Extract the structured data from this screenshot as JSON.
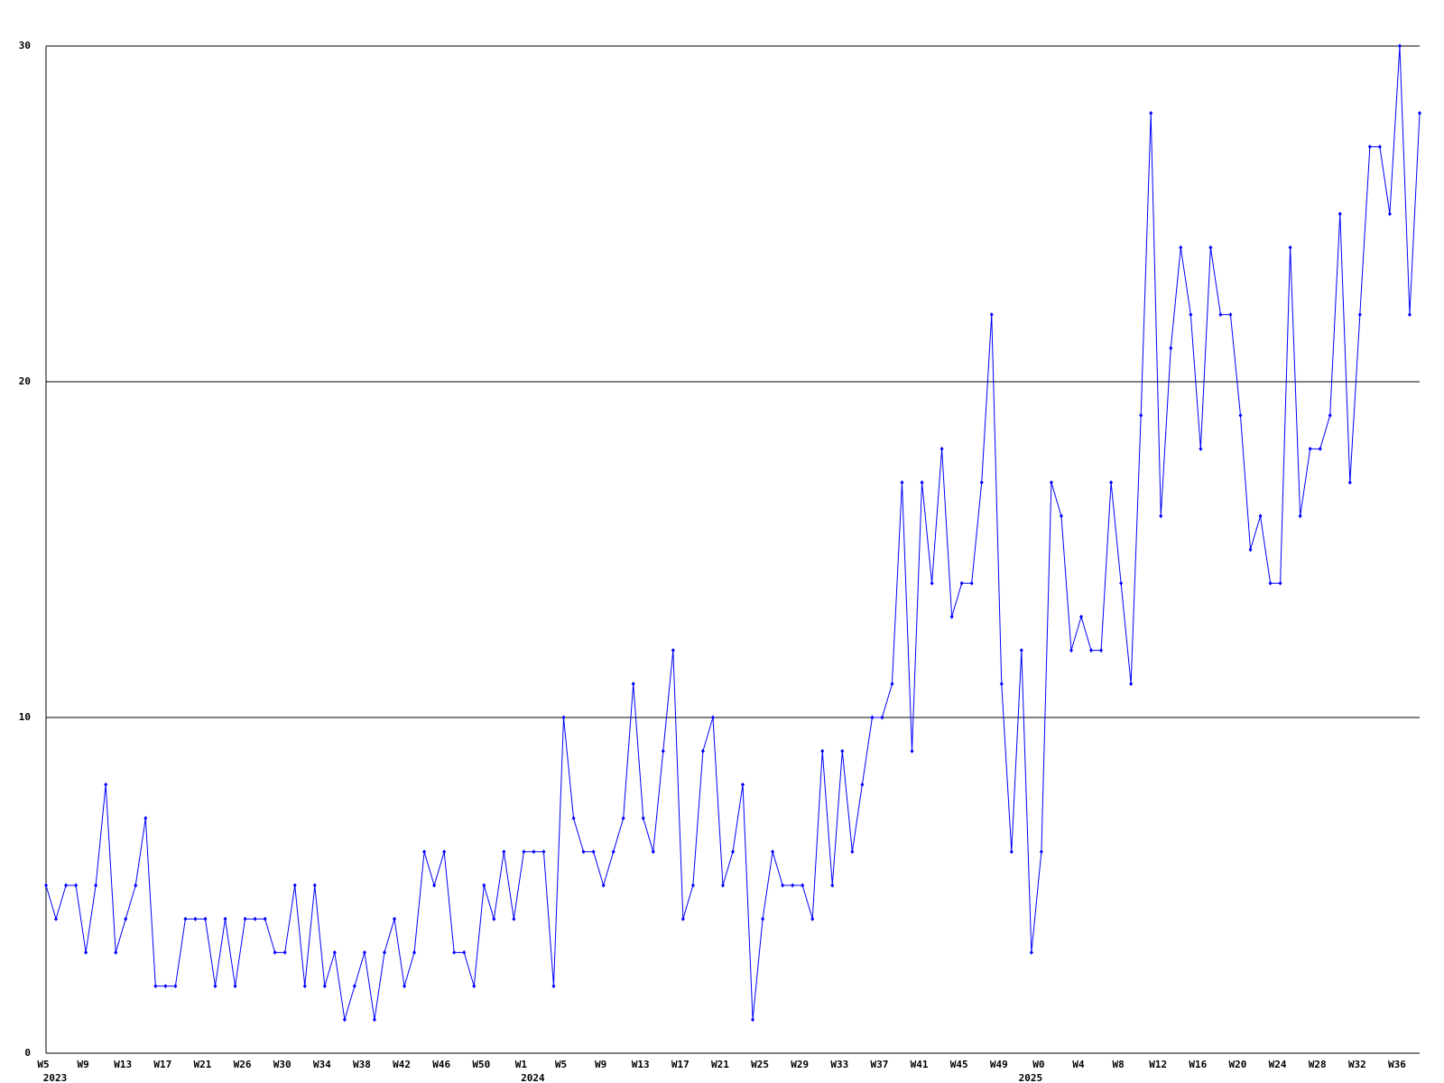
{
  "chart_data": {
    "type": "line",
    "color": "#0000ff",
    "grid": true,
    "ylim": [
      0,
      30
    ],
    "yticks": [
      0,
      10,
      20,
      30
    ],
    "categories": [
      "W5",
      null,
      null,
      null,
      "W9",
      null,
      null,
      null,
      "W13",
      null,
      null,
      null,
      "W17",
      null,
      null,
      null,
      "W21",
      null,
      null,
      null,
      "W26",
      null,
      null,
      null,
      "W30",
      null,
      null,
      null,
      "W34",
      null,
      null,
      null,
      "W38",
      null,
      null,
      null,
      "W42",
      null,
      null,
      null,
      "W46",
      null,
      null,
      null,
      "W50",
      null,
      null,
      null,
      "W1",
      null,
      null,
      null,
      "W5",
      null,
      null,
      null,
      "W9",
      null,
      null,
      null,
      "W13",
      null,
      null,
      null,
      "W17",
      null,
      null,
      null,
      "W21",
      null,
      null,
      null,
      "W25",
      null,
      null,
      null,
      "W29",
      null,
      null,
      null,
      "W33",
      null,
      null,
      null,
      "W37",
      null,
      null,
      null,
      "W41",
      null,
      null,
      null,
      "W45",
      null,
      null,
      null,
      "W49",
      null,
      null,
      null,
      "W0",
      null,
      null,
      null,
      "W4",
      null,
      null,
      null,
      "W8",
      null,
      null,
      null,
      "W12",
      null,
      null,
      null,
      "W16",
      null,
      null,
      null,
      "W20",
      null,
      null,
      null,
      "W24",
      null,
      null,
      null,
      "W28",
      null,
      null,
      null,
      "W32",
      null,
      null,
      null,
      "W36",
      null,
      null
    ],
    "years": [
      "2023",
      null,
      null,
      null,
      null,
      null,
      null,
      null,
      null,
      null,
      null,
      null,
      null,
      null,
      null,
      null,
      null,
      null,
      null,
      null,
      null,
      null,
      null,
      null,
      null,
      null,
      null,
      null,
      null,
      null,
      null,
      null,
      null,
      null,
      null,
      null,
      null,
      null,
      null,
      null,
      null,
      null,
      null,
      null,
      null,
      null,
      null,
      null,
      "2024",
      null,
      null,
      null,
      null,
      null,
      null,
      null,
      null,
      null,
      null,
      null,
      null,
      null,
      null,
      null,
      null,
      null,
      null,
      null,
      null,
      null,
      null,
      null,
      null,
      null,
      null,
      null,
      null,
      null,
      null,
      null,
      null,
      null,
      null,
      null,
      null,
      null,
      null,
      null,
      null,
      null,
      null,
      null,
      null,
      null,
      null,
      null,
      null,
      null,
      "2025",
      null,
      null,
      null,
      null,
      null,
      null,
      null,
      null,
      null,
      null,
      null,
      null,
      null,
      null,
      null,
      null,
      null,
      null,
      null,
      null,
      null,
      null,
      null,
      null,
      null,
      null,
      null,
      null,
      null,
      null,
      null,
      null,
      null,
      null,
      null,
      null,
      null,
      null
    ],
    "values": [
      5,
      4,
      5,
      5,
      3,
      5,
      8,
      3,
      4,
      5,
      7,
      2,
      2,
      2,
      4,
      4,
      4,
      2,
      4,
      2,
      4,
      4,
      4,
      3,
      3,
      5,
      2,
      5,
      2,
      3,
      1,
      2,
      3,
      1,
      3,
      4,
      2,
      3,
      6,
      5,
      6,
      3,
      3,
      2,
      5,
      4,
      6,
      4,
      6,
      6,
      6,
      2,
      10,
      7,
      6,
      6,
      5,
      6,
      7,
      11,
      7,
      6,
      9,
      12,
      4,
      5,
      9,
      10,
      5,
      6,
      8,
      1,
      4,
      6,
      5,
      5,
      5,
      4,
      9,
      5,
      9,
      6,
      8,
      10,
      10,
      11,
      17,
      9,
      17,
      14,
      18,
      13,
      14,
      14,
      17,
      22,
      11,
      6,
      12,
      3,
      6,
      17,
      16,
      12,
      13,
      12,
      12,
      17,
      14,
      11,
      19,
      28,
      16,
      21,
      24,
      22,
      18,
      24,
      22,
      22,
      19,
      15,
      16,
      14,
      14,
      24,
      16,
      18,
      18,
      19,
      25,
      17,
      22,
      27,
      27,
      25,
      30,
      22,
      28
    ]
  }
}
